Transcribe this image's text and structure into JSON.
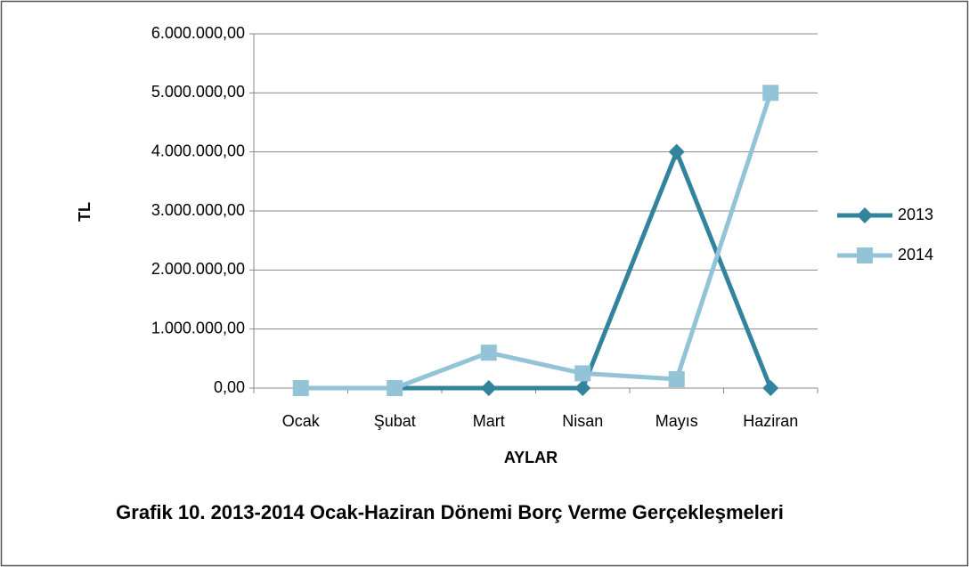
{
  "chart_data": {
    "type": "line",
    "title": "Grafik 10. 2013-2014 Ocak-Haziran Dönemi Borç Verme Gerçekleşmeleri",
    "x_label": "AYLAR",
    "y_label": "TL",
    "categories": [
      "Ocak",
      "Şubat",
      "Mart",
      "Nisan",
      "Mayıs",
      "Haziran"
    ],
    "series": [
      {
        "name": "2013",
        "color": "#31849b",
        "marker": "diamond",
        "values": [
          0,
          0,
          0,
          0,
          4000000,
          0
        ]
      },
      {
        "name": "2014",
        "color": "#93c3d6",
        "marker": "square",
        "values": [
          0,
          0,
          600000,
          250000,
          150000,
          5000000
        ]
      }
    ],
    "ylim": [
      0,
      6000000
    ],
    "yticks": [
      {
        "value": 0,
        "label": "0,00"
      },
      {
        "value": 1000000,
        "label": "1.000.000,00"
      },
      {
        "value": 2000000,
        "label": "2.000.000,00"
      },
      {
        "value": 3000000,
        "label": "3.000.000,00"
      },
      {
        "value": 4000000,
        "label": "4.000.000,00"
      },
      {
        "value": 5000000,
        "label": "5.000.000,00"
      },
      {
        "value": 6000000,
        "label": "6.000.000,00"
      }
    ],
    "grid": true,
    "legend": "right"
  }
}
